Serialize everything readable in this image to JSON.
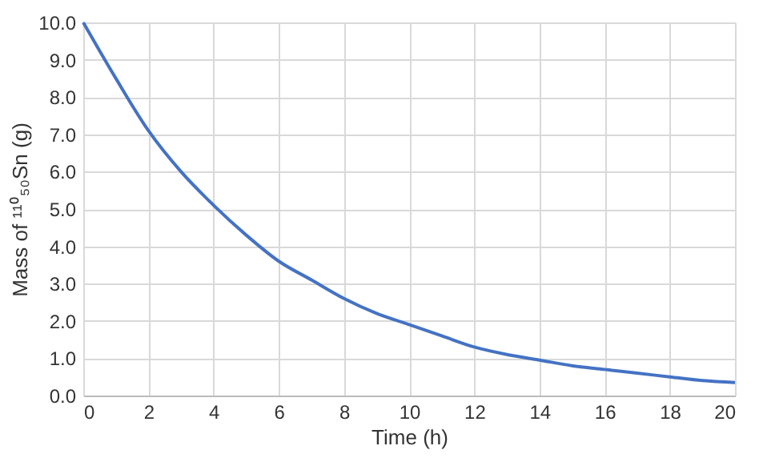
{
  "chart_data": {
    "type": "line",
    "xlabel": "Time (h)",
    "ylabel": "Mass of ¹¹⁰₅₀Sn (g)",
    "x": [
      0,
      1,
      2,
      3,
      4,
      5,
      6,
      7,
      8,
      9,
      10,
      11,
      12,
      13,
      14,
      15,
      16,
      17,
      18,
      19,
      20
    ],
    "series": [
      {
        "color": "#4472c4",
        "values": [
          10.0,
          8.5,
          7.1,
          6.0,
          5.1,
          4.3,
          3.6,
          3.1,
          2.6,
          2.2,
          1.9,
          1.6,
          1.3,
          1.1,
          0.95,
          0.8,
          0.7,
          0.6,
          0.5,
          0.4,
          0.35
        ]
      }
    ],
    "xlim": [
      0,
      20
    ],
    "xticks": [
      0,
      2,
      4,
      6,
      8,
      10,
      12,
      14,
      16,
      18,
      20
    ],
    "ylim": [
      0,
      10
    ],
    "yticks": [
      {
        "value": 0,
        "label": "0.0"
      },
      {
        "value": 1,
        "label": "1.0"
      },
      {
        "value": 2,
        "label": "2.0"
      },
      {
        "value": 3,
        "label": "3.0"
      },
      {
        "value": 4,
        "label": "4.0"
      },
      {
        "value": 5,
        "label": "5.0"
      },
      {
        "value": 6,
        "label": "6.0"
      },
      {
        "value": 7,
        "label": "7.0"
      },
      {
        "value": 8,
        "label": "8.0"
      },
      {
        "value": 9,
        "label": "9.0"
      },
      {
        "value": 10,
        "label": "10.0"
      }
    ],
    "grid": true,
    "marker": "none",
    "line_style": "solid"
  }
}
